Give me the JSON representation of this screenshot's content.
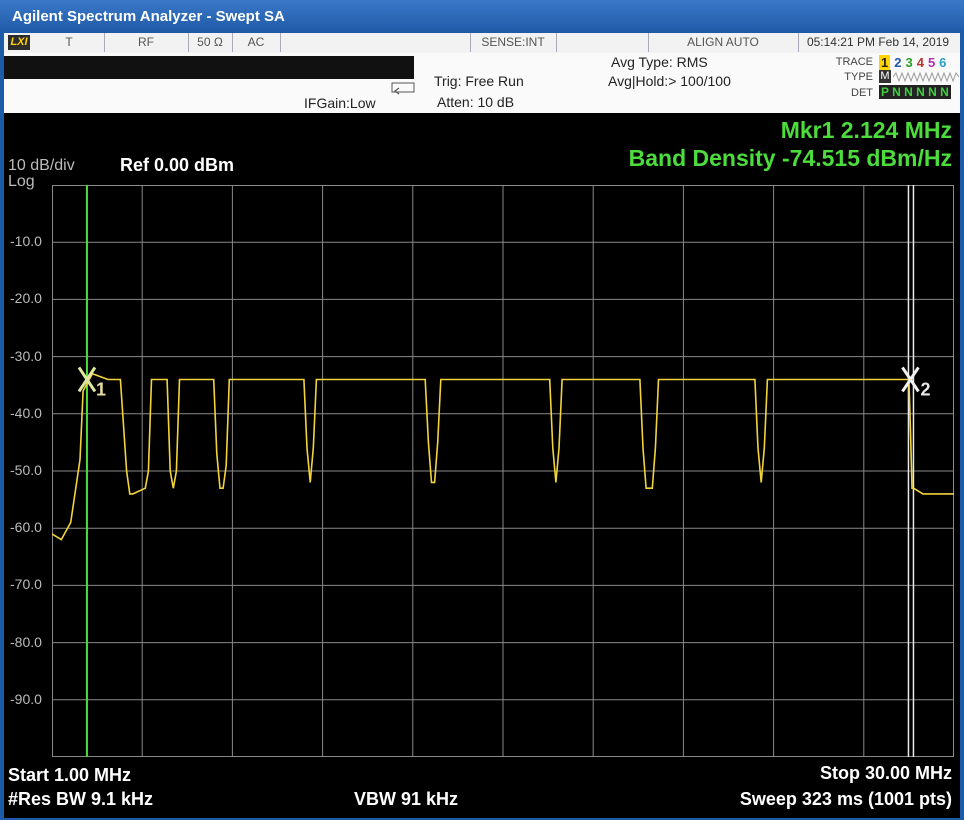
{
  "window": {
    "title": "Agilent Spectrum Analyzer - Swept SA"
  },
  "status_bar": {
    "lxi": "LXI",
    "cells": [
      "T",
      "RF",
      "50 Ω",
      "AC",
      "SENSE:INT",
      "ALIGN AUTO"
    ],
    "datetime": "05:14:21 PM Feb 14, 2019"
  },
  "info": {
    "ifgain": "IFGain:Low",
    "trig": "Trig: Free Run",
    "atten": "Atten: 10 dB",
    "avg_type": "Avg Type: RMS",
    "avg_hold": "Avg|Hold:> 100/100",
    "trace_label": "TRACE",
    "trace_nums": [
      "1",
      "2",
      "3",
      "4",
      "5",
      "6"
    ],
    "type_label": "TYPE",
    "type_val": "M",
    "det_label": "DET",
    "det_val": "P N N N N N"
  },
  "display": {
    "scale": "10 dB/div",
    "log": "Log",
    "ref": "Ref 0.00 dBm",
    "marker_line1": "Mkr1 2.124 MHz",
    "marker_line2": "Band Density -74.515 dBm/Hz",
    "start": "Start 1.00 MHz",
    "res_bw": "#Res BW 9.1 kHz",
    "vbw": "VBW 91 kHz",
    "stop": "Stop 30.00 MHz",
    "sweep": "Sweep  323 ms (1001 pts)",
    "marker1_label": "1",
    "marker2_label": "2"
  },
  "colors": {
    "trace": "#f2d43a",
    "marker_green": "#4cdc3c",
    "grid": "#8a8a8a"
  },
  "chart_data": {
    "type": "line",
    "xlim": [
      1.0,
      30.0
    ],
    "ylim": [
      -100,
      0
    ],
    "y_ticks": [
      "-10.0",
      "-20.0",
      "-30.0",
      "-40.0",
      "-50.0",
      "-60.0",
      "-70.0",
      "-80.0",
      "-90.0"
    ],
    "marker1_x": 2.124,
    "marker2_x": 28.6,
    "series": [
      {
        "x": [
          1.0,
          1.3,
          1.6,
          1.9,
          2.0,
          2.1,
          2.3,
          2.8,
          3.2,
          3.4,
          3.5,
          3.6,
          4.0,
          4.1,
          4.2,
          4.7,
          4.8,
          4.9,
          5.0,
          5.1,
          6.2,
          6.3,
          6.4,
          6.5,
          6.6,
          6.7,
          9.1,
          9.2,
          9.3,
          9.4,
          9.5,
          13.0,
          13.1,
          13.2,
          13.3,
          13.4,
          13.5,
          17.0,
          17.1,
          17.2,
          17.3,
          17.4,
          19.9,
          20.0,
          20.1,
          20.3,
          20.4,
          20.5,
          23.6,
          23.7,
          23.8,
          23.9,
          24.0,
          28.55,
          28.6,
          28.65,
          28.7,
          29.0,
          30.0
        ],
        "y": [
          -61,
          -62,
          -59,
          -48,
          -36,
          -35,
          -33,
          -34,
          -34,
          -50,
          -54,
          -54,
          -53,
          -50,
          -34,
          -34,
          -50,
          -53,
          -50,
          -34,
          -34,
          -47,
          -53,
          -53,
          -49,
          -34,
          -34,
          -46,
          -52,
          -46,
          -34,
          -34,
          -45,
          -52,
          -52,
          -45,
          -34,
          -34,
          -46,
          -52,
          -46,
          -34,
          -34,
          -46,
          -53,
          -53,
          -46,
          -34,
          -34,
          -46,
          -52,
          -46,
          -34,
          -34,
          -43,
          -53,
          -53,
          -54,
          -54
        ]
      }
    ]
  }
}
